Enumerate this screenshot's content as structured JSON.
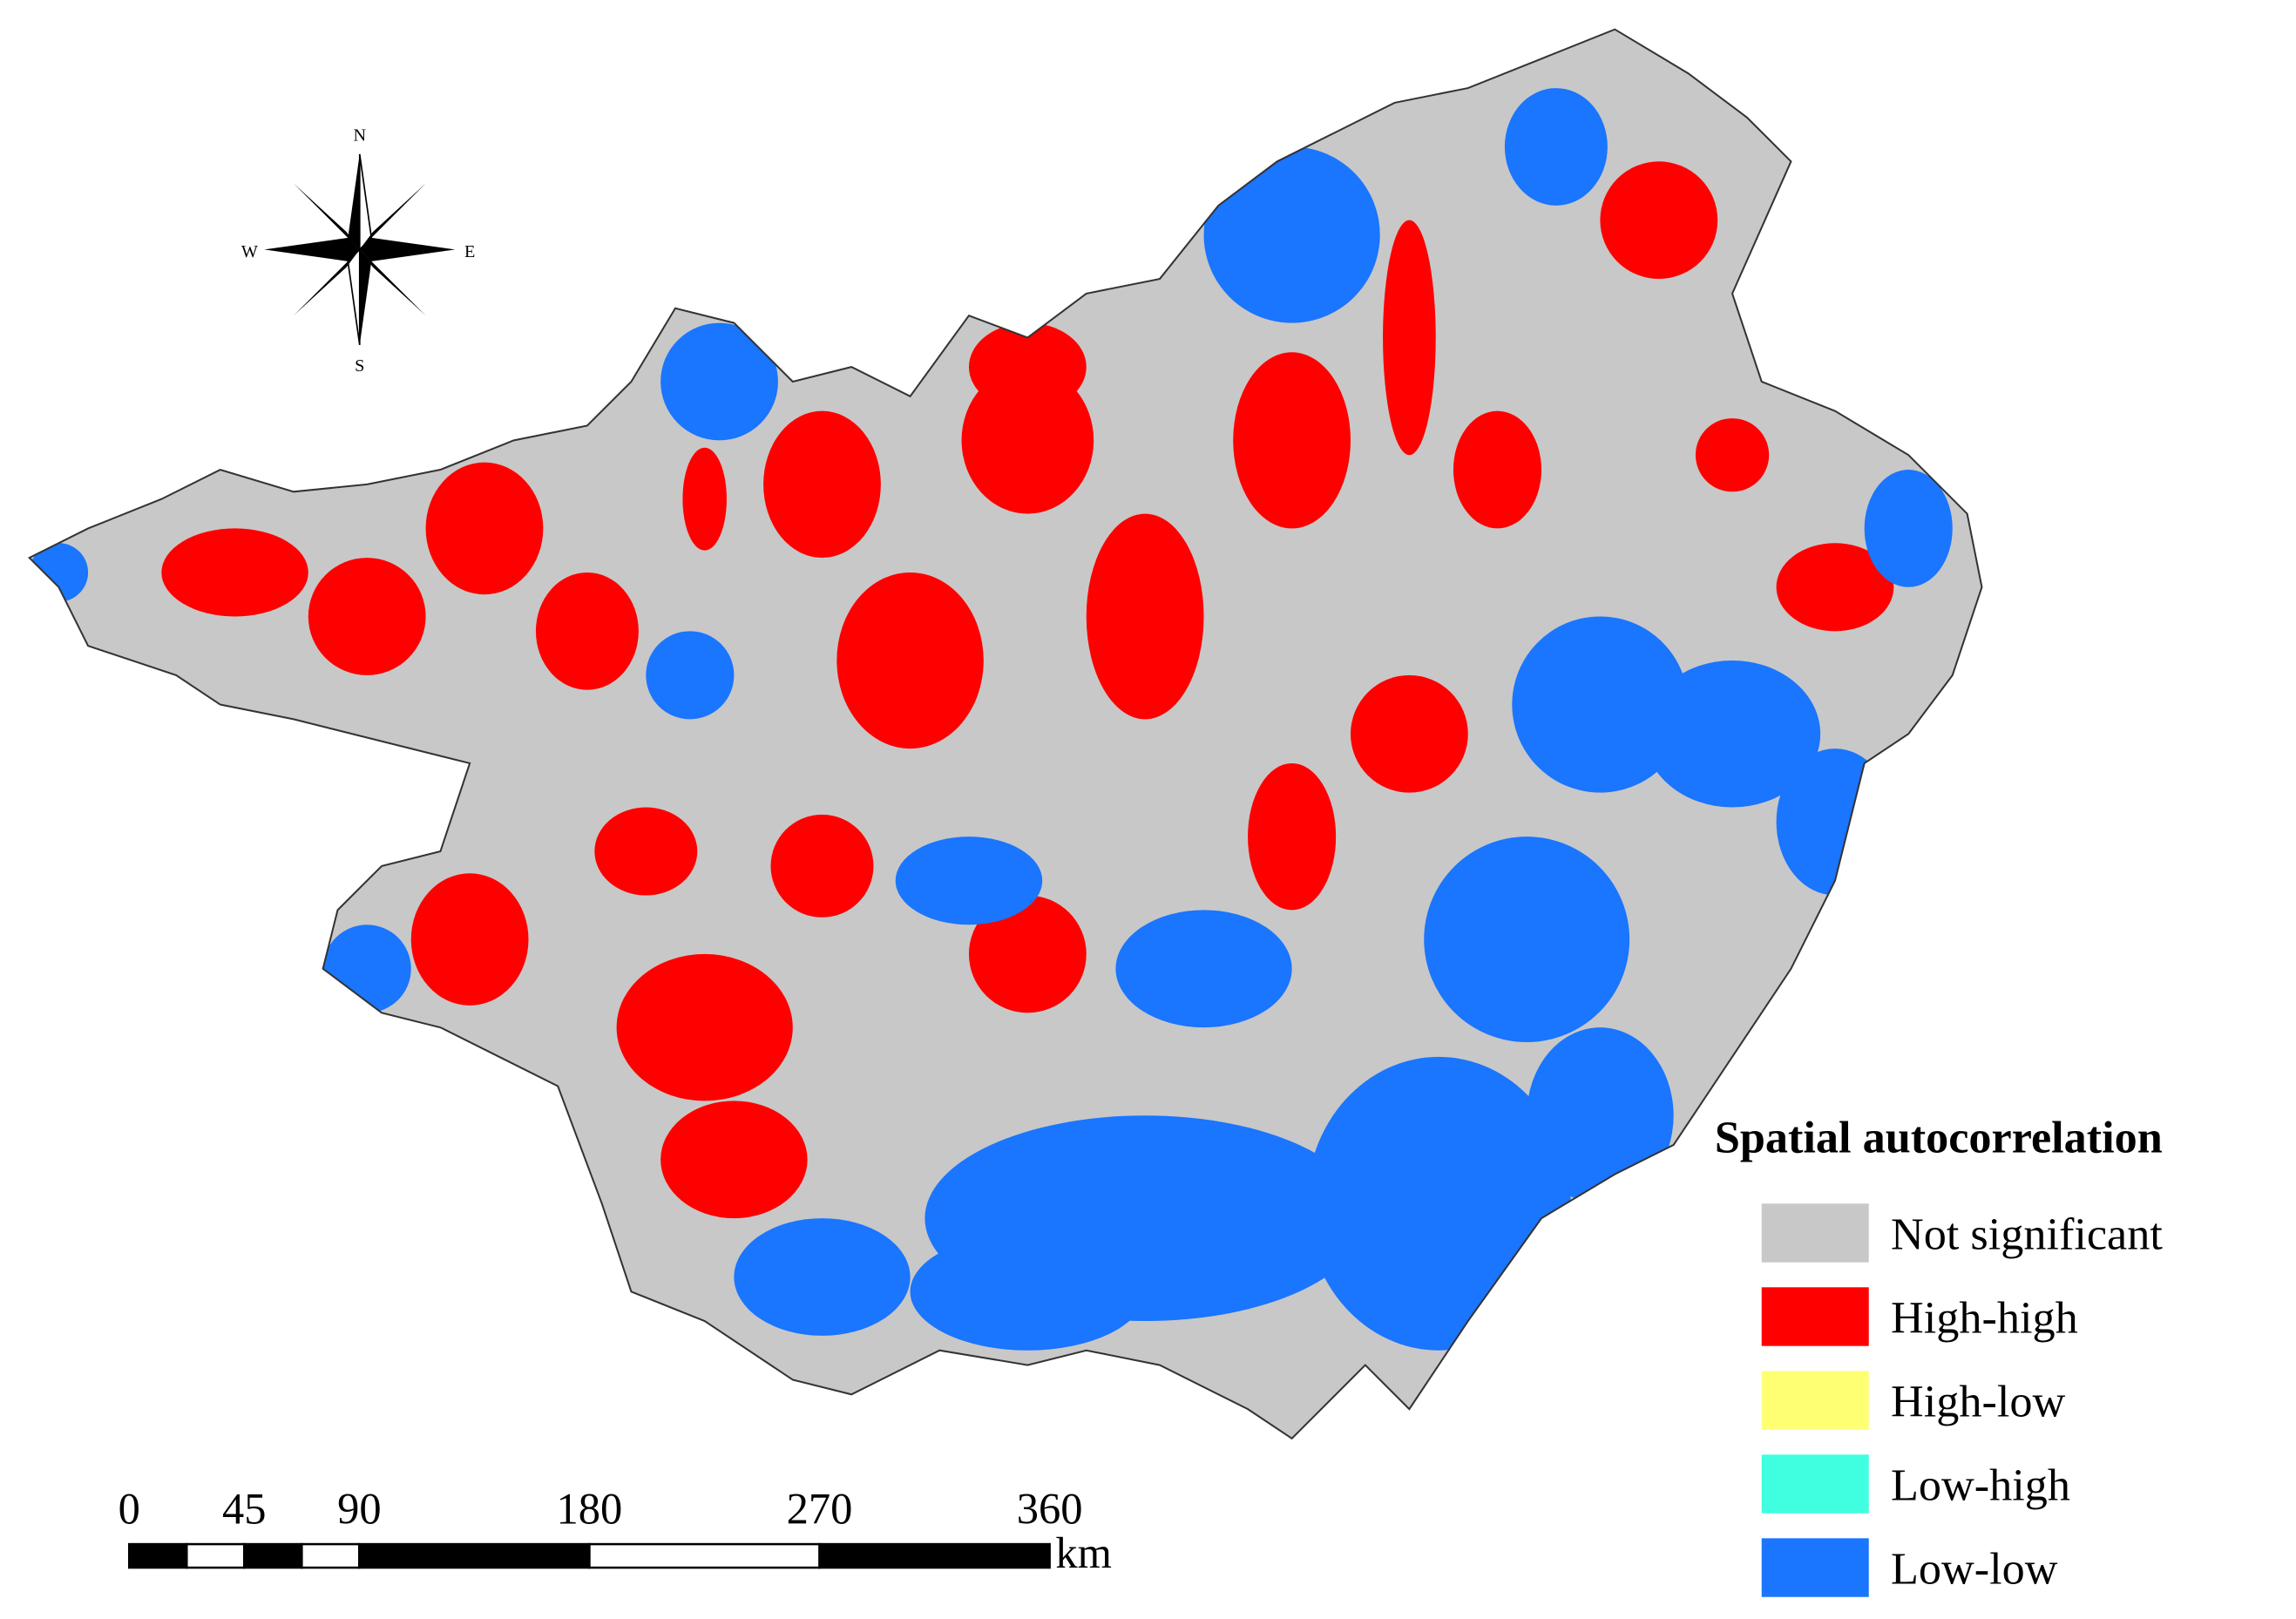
{
  "compass": {
    "north": "N",
    "south": "S",
    "west": "W",
    "east": "E"
  },
  "scale_bar": {
    "ticks": [
      0,
      45,
      90,
      180,
      270,
      360
    ],
    "unit": "km"
  },
  "legend": {
    "title": "Spatial autocorrelation",
    "items": [
      {
        "label": "Not significant",
        "color": "#c8c8c8"
      },
      {
        "label": "High-high",
        "color": "#ff0000"
      },
      {
        "label": "High-low",
        "color": "#ffff73"
      },
      {
        "label": "Low-high",
        "color": "#40ffe0"
      },
      {
        "label": "Low-low",
        "color": "#1a75ff"
      }
    ]
  }
}
